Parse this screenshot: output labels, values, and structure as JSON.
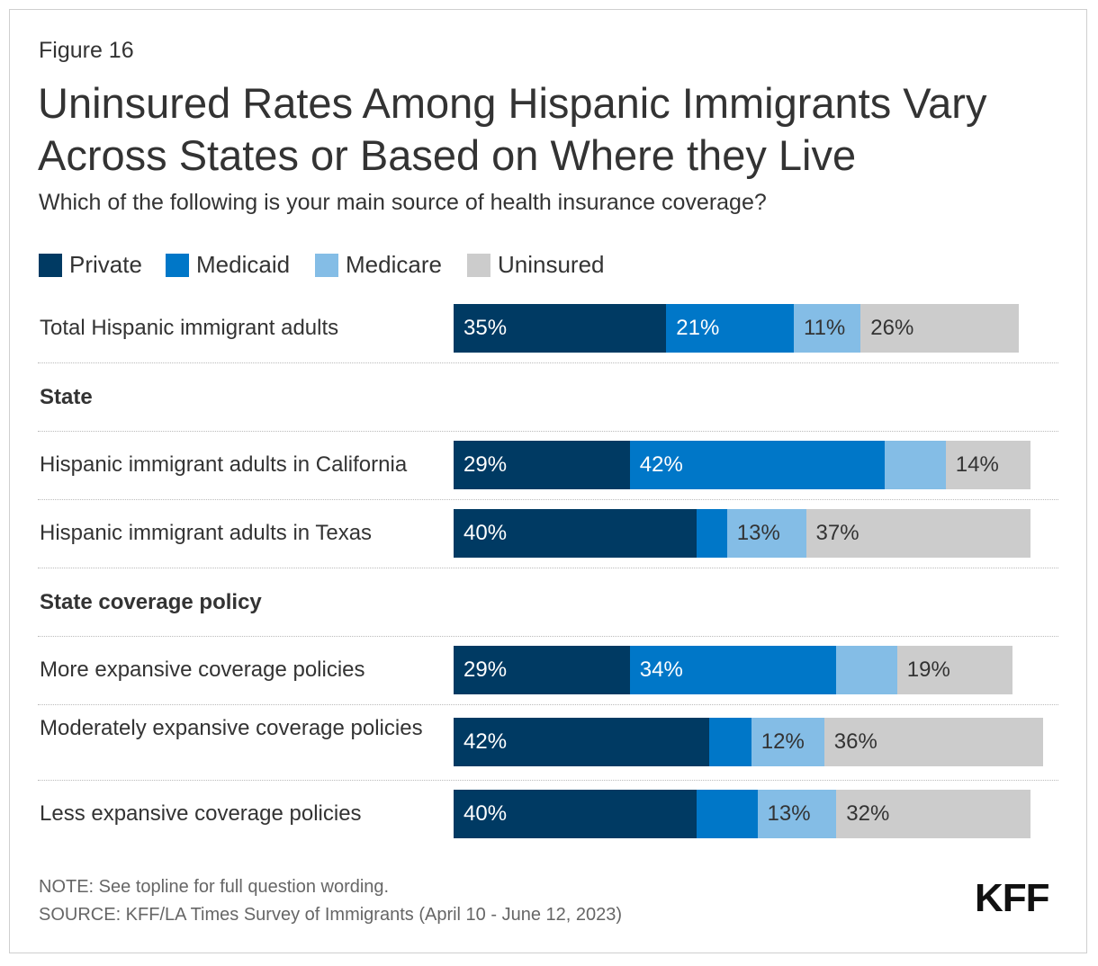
{
  "figure_label": "Figure 16",
  "title": "Uninsured Rates Among Hispanic Immigrants Vary Across States or Based on Where they Live",
  "subtitle": "Which of the following is your main source of health insurance coverage?",
  "note": "NOTE: See topline for full question wording.",
  "source": "SOURCE: KFF/LA Times Survey of Immigrants (April 10 - June 12, 2023)",
  "logo": "KFF",
  "chart_data": {
    "type": "bar",
    "orientation": "horizontal",
    "stacked": true,
    "series": [
      {
        "name": "Private",
        "color": "#003a63"
      },
      {
        "name": "Medicaid",
        "color": "#0077c8"
      },
      {
        "name": "Medicare",
        "color": "#84bde6"
      },
      {
        "name": "Uninsured",
        "color": "#cccccc"
      }
    ],
    "sections": [
      "State",
      "State coverage policy"
    ],
    "rows": [
      {
        "category": "Total Hispanic immigrant adults",
        "values": [
          35,
          21,
          11,
          26
        ],
        "labels": [
          "35%",
          "21%",
          "11%",
          "26%"
        ]
      },
      {
        "category": "Hispanic immigrant adults in California",
        "values": [
          29,
          42,
          10,
          14
        ],
        "labels": [
          "29%",
          "42%",
          "",
          "14%"
        ]
      },
      {
        "category": "Hispanic immigrant adults in Texas",
        "values": [
          40,
          5,
          13,
          37
        ],
        "labels": [
          "40%",
          "",
          "13%",
          "37%"
        ]
      },
      {
        "category": "More expansive coverage policies",
        "values": [
          29,
          34,
          10,
          19
        ],
        "labels": [
          "29%",
          "34%",
          "",
          "19%"
        ]
      },
      {
        "category": "Moderately expansive coverage policies",
        "values": [
          42,
          7,
          12,
          36
        ],
        "labels": [
          "42%",
          "",
          "12%",
          "36%"
        ]
      },
      {
        "category": "Less expansive coverage policies",
        "values": [
          40,
          10,
          13,
          32
        ],
        "labels": [
          "40%",
          "",
          "13%",
          "32%"
        ]
      }
    ],
    "xlim": [
      0,
      100
    ]
  }
}
